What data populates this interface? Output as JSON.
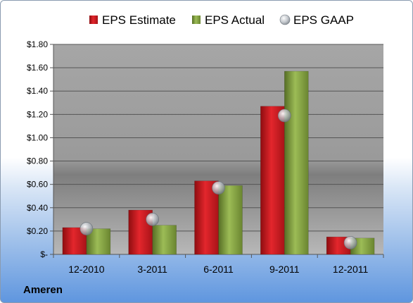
{
  "chart_data": {
    "type": "bar",
    "title": "",
    "categories": [
      "12-2010",
      "3-2011",
      "6-2011",
      "9-2011",
      "12-2011"
    ],
    "series": [
      {
        "name": "EPS Estimate",
        "kind": "bar",
        "color": "#c8181e",
        "values": [
          0.23,
          0.38,
          0.63,
          1.27,
          0.15
        ]
      },
      {
        "name": "EPS Actual",
        "kind": "bar",
        "color": "#7a9a3a",
        "values": [
          0.22,
          0.25,
          0.59,
          1.57,
          0.14
        ]
      },
      {
        "name": "EPS GAAP",
        "kind": "marker",
        "color": "#a9b0b8",
        "values": [
          0.22,
          0.3,
          0.57,
          1.19,
          0.1
        ]
      }
    ],
    "ylim": [
      0,
      1.8
    ],
    "yticks": [
      0,
      0.2,
      0.4,
      0.6,
      0.8,
      1.0,
      1.2,
      1.4,
      1.6,
      1.8
    ],
    "ytick_labels": [
      "$-",
      "$0.20",
      "$0.40",
      "$0.60",
      "$0.80",
      "$1.00",
      "$1.20",
      "$1.40",
      "$1.60",
      "$1.80"
    ],
    "grid": true,
    "legend_position": "top"
  },
  "company": "Ameren"
}
